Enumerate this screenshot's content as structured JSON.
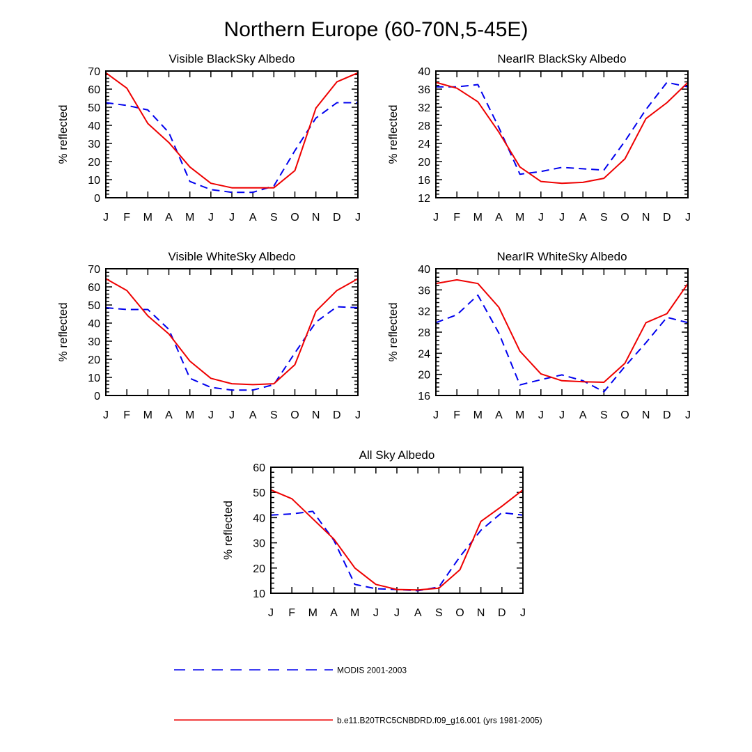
{
  "figure": {
    "title": "Northern Europe (60-70N,5-45E)"
  },
  "chart_data": [
    {
      "type": "line",
      "title": "Visible BlackSky Albedo",
      "xlabel": "",
      "ylabel": "% reflected",
      "categories": [
        "J",
        "F",
        "M",
        "A",
        "M",
        "J",
        "J",
        "A",
        "S",
        "O",
        "N",
        "D",
        "J"
      ],
      "ylim": [
        0,
        70
      ],
      "yticks": [
        0,
        10,
        20,
        30,
        40,
        50,
        60,
        70
      ],
      "series": [
        {
          "name": "MODIS 2001-2003",
          "color": "#0000ee",
          "style": "dashed",
          "values": [
            52.5,
            51,
            48.5,
            36,
            9,
            4.5,
            3,
            3,
            6.5,
            26,
            44,
            52.5,
            52.5
          ]
        },
        {
          "name": "b.e11.B20TRC5CNBDRD.f09_g16.001 (yrs 1981-2005)",
          "color": "#ee0000",
          "style": "solid",
          "values": [
            69,
            60.5,
            41,
            30.5,
            17,
            8,
            5.5,
            5.5,
            5.5,
            15,
            49.5,
            64,
            69
          ]
        }
      ]
    },
    {
      "type": "line",
      "title": "NearIR BlackSky Albedo",
      "xlabel": "",
      "ylabel": "% reflected",
      "categories": [
        "J",
        "F",
        "M",
        "A",
        "M",
        "J",
        "J",
        "A",
        "S",
        "O",
        "N",
        "D",
        "J"
      ],
      "ylim": [
        12,
        40
      ],
      "yticks": [
        12,
        16,
        20,
        24,
        28,
        32,
        36,
        40
      ],
      "series": [
        {
          "name": "MODIS 2001-2003",
          "color": "#0000ee",
          "style": "dashed",
          "values": [
            36.5,
            36.5,
            37,
            27.5,
            17.2,
            17.8,
            18.7,
            18.4,
            18.1,
            24.5,
            31.5,
            37.5,
            36.5
          ]
        },
        {
          "name": "b.e11.B20TRC5CNBDRD.f09_g16.001 (yrs 1981-2005)",
          "color": "#ee0000",
          "style": "solid",
          "values": [
            37.5,
            36.2,
            33.2,
            26.5,
            18.8,
            15.6,
            15.2,
            15.4,
            16.3,
            20.6,
            29.5,
            33,
            37.5
          ]
        }
      ]
    },
    {
      "type": "line",
      "title": "Visible WhiteSky Albedo",
      "xlabel": "",
      "ylabel": "% reflected",
      "categories": [
        "J",
        "F",
        "M",
        "A",
        "M",
        "J",
        "J",
        "A",
        "S",
        "O",
        "N",
        "D",
        "J"
      ],
      "ylim": [
        0,
        70
      ],
      "yticks": [
        0,
        10,
        20,
        30,
        40,
        50,
        60,
        70
      ],
      "series": [
        {
          "name": "MODIS 2001-2003",
          "color": "#0000ee",
          "style": "dashed",
          "values": [
            48.5,
            47.5,
            47.5,
            36.5,
            9.5,
            4.5,
            3,
            3,
            6,
            23.5,
            40.5,
            49,
            48.5
          ]
        },
        {
          "name": "b.e11.B20TRC5CNBDRD.f09_g16.001 (yrs 1981-2005)",
          "color": "#ee0000",
          "style": "solid",
          "values": [
            64.5,
            58,
            44,
            34,
            19,
            9.5,
            6.5,
            6,
            6.5,
            17,
            46.5,
            58,
            64.5
          ]
        }
      ]
    },
    {
      "type": "line",
      "title": "NearIR WhiteSky Albedo",
      "xlabel": "",
      "ylabel": "% reflected",
      "categories": [
        "J",
        "F",
        "M",
        "A",
        "M",
        "J",
        "J",
        "A",
        "S",
        "O",
        "N",
        "D",
        "J"
      ],
      "ylim": [
        16,
        40
      ],
      "yticks": [
        16,
        20,
        24,
        28,
        32,
        36,
        40
      ],
      "series": [
        {
          "name": "MODIS 2001-2003",
          "color": "#0000ee",
          "style": "dashed",
          "values": [
            29.8,
            31.3,
            35,
            27.8,
            18,
            19,
            19.9,
            18.8,
            16.7,
            21.5,
            26,
            30.8,
            29.8
          ]
        },
        {
          "name": "b.e11.B20TRC5CNBDRD.f09_g16.001 (yrs 1981-2005)",
          "color": "#ee0000",
          "style": "solid",
          "values": [
            37.2,
            37.9,
            37.2,
            32.7,
            24.4,
            20.1,
            18.8,
            18.6,
            18.5,
            22.1,
            29.8,
            31.5,
            37.2
          ]
        }
      ]
    },
    {
      "type": "line",
      "title": "All Sky Albedo",
      "xlabel": "",
      "ylabel": "% reflected",
      "categories": [
        "J",
        "F",
        "M",
        "A",
        "M",
        "J",
        "J",
        "A",
        "S",
        "O",
        "N",
        "D",
        "J"
      ],
      "ylim": [
        10,
        60
      ],
      "yticks": [
        10,
        20,
        30,
        40,
        50,
        60
      ],
      "series": [
        {
          "name": "MODIS 2001-2003",
          "color": "#0000ee",
          "style": "dashed",
          "values": [
            41,
            41.5,
            42.5,
            31,
            13.5,
            11.8,
            11.5,
            11,
            12.5,
            24.5,
            35,
            42,
            41
          ]
        },
        {
          "name": "b.e11.B20TRC5CNBDRD.f09_g16.001 (yrs 1981-2005)",
          "color": "#ee0000",
          "style": "solid",
          "values": [
            51,
            47.5,
            39.5,
            31.5,
            20,
            13.5,
            11.5,
            11.3,
            12,
            19.3,
            38.5,
            44.5,
            51
          ]
        }
      ]
    }
  ],
  "legend": [
    {
      "label": "MODIS 2001-2003",
      "color": "#0000ee",
      "style": "dashed"
    },
    {
      "label": "b.e11.B20TRC5CNBDRD.f09_g16.001 (yrs 1981-2005)",
      "color": "#ee0000",
      "style": "solid"
    }
  ]
}
